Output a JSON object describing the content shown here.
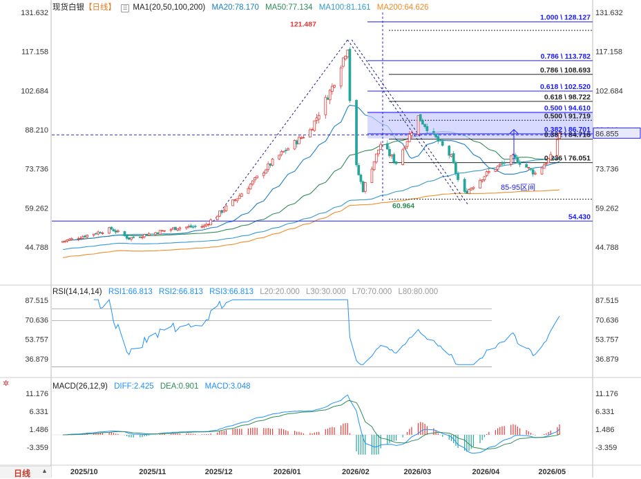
{
  "header": {
    "symbol": "现货白银",
    "period": "【日线】",
    "ma_settings": "MA1(20,50,100,200)",
    "ma20": "MA20:78.170",
    "ma50": "MA50:77.134",
    "ma100": "MA100:81.161",
    "ma200": "MA200:64.626"
  },
  "rsi_header": {
    "settings": "RSI(14,14,14)",
    "rsi1": "RSI1:66.813",
    "rsi2": "RSI2:66.813",
    "rsi3": "RSI3:66.813",
    "l20": "L20:20.000",
    "l30": "L30:30.000",
    "l70": "L70:70.000",
    "l80": "L80:80.000"
  },
  "macd_header": {
    "settings": "MACD(26,12,9)",
    "diff": "DIFF:2.425",
    "dea": "DEA:0.901",
    "macd": "MACD:3.048"
  },
  "bottom": {
    "period_button": "日线"
  },
  "colors": {
    "up": "#e53935",
    "down": "#26a69a",
    "ma20": "#1a7fc1",
    "ma50": "#2e8b57",
    "ma100": "#3399cc",
    "ma200": "#f08c28",
    "fib": "#1a1aff",
    "rsi": "#1e90ff",
    "price_tag": "#1a1aff"
  },
  "chart_data": [
    {
      "type": "candlestick",
      "title": "现货白银【日线】",
      "x_ticks": [
        "2025/10",
        "2025/11",
        "2025/12",
        "2026/01",
        "2026/02",
        "2026/03",
        "2026/04",
        "2026/05"
      ],
      "y_ticks": [
        131.632,
        117.158,
        102.684,
        88.21,
        73.736,
        59.262,
        44.788
      ],
      "ylim": [
        38,
        134
      ],
      "current_price": "86.855",
      "price_path_anchors": [
        {
          "date": "2025/09/20",
          "close": 46.5
        },
        {
          "date": "2025/10/14",
          "close": 51.5
        },
        {
          "date": "2025/10/22",
          "close": 48.0
        },
        {
          "date": "2025/11/13",
          "close": 52.0
        },
        {
          "date": "2025/11/25",
          "close": 52.5
        },
        {
          "date": "2025/12/10",
          "close": 63.0
        },
        {
          "date": "2025/12/28",
          "close": 78.0
        },
        {
          "date": "2026/01/12",
          "close": 88.0
        },
        {
          "date": "2026/01/22",
          "close": 104.0
        },
        {
          "date": "2026/01/29",
          "close": 119.0
        },
        {
          "date": "2026/01/31",
          "close": 80.0
        },
        {
          "date": "2026/02/05",
          "close": 66.0
        },
        {
          "date": "2026/02/13",
          "close": 83.0
        },
        {
          "date": "2026/02/20",
          "close": 76.0
        },
        {
          "date": "2026/03/02",
          "close": 93.0
        },
        {
          "date": "2026/03/09",
          "close": 86.0
        },
        {
          "date": "2026/03/17",
          "close": 78.0
        },
        {
          "date": "2026/03/22",
          "close": 64.0
        },
        {
          "date": "2026/04/02",
          "close": 72.0
        },
        {
          "date": "2026/04/14",
          "close": 78.0
        },
        {
          "date": "2026/04/24",
          "close": 72.0
        },
        {
          "date": "2026/05/01",
          "close": 78.0
        },
        {
          "date": "2026/05/05",
          "close": 87.0
        }
      ],
      "peak_label": "121.487",
      "low_label": "60.964",
      "fib_levels": [
        {
          "label": "1.000 \\ 128.127",
          "value": 128.127,
          "style": "solid-blue"
        },
        {
          "label": "0.786 \\ 113.782",
          "value": 113.782,
          "style": "solid-blue"
        },
        {
          "label": "0.786 \\ 108.693",
          "value": 108.693,
          "style": "solid-black"
        },
        {
          "label": "0.618 \\ 102.520",
          "value": 102.52,
          "style": "solid-blue"
        },
        {
          "label": "0.618 \\ 98.722",
          "value": 98.722,
          "style": "solid-black"
        },
        {
          "label": "0.500 \\ 94.610",
          "value": 94.61,
          "style": "solid-blue"
        },
        {
          "label": "0.500 \\ 91.719",
          "value": 91.719,
          "style": "dotted-black"
        },
        {
          "label": "0.382 \\ 86.701",
          "value": 86.701,
          "style": "solid-blue"
        },
        {
          "label": "0.382 \\ 84.716",
          "value": 84.716,
          "style": "solid-black"
        },
        {
          "label": "0.236 \\ 76.051",
          "value": 76.051,
          "style": "solid-black"
        },
        {
          "label": "54.430",
          "value": 54.43,
          "style": "solid-blue-full"
        }
      ],
      "annotation": "85-95区间",
      "highlight_band": [
        85,
        95
      ]
    },
    {
      "type": "line",
      "title": "RSI(14,14,14)",
      "y_ticks": [
        87.515,
        70.636,
        53.757,
        36.879
      ],
      "ylim": [
        30,
        92
      ],
      "levels": [
        80,
        70,
        30
      ]
    },
    {
      "type": "bar+line",
      "title": "MACD(26,12,9)",
      "y_ticks": [
        11.176,
        6.331,
        1.486,
        -3.359
      ],
      "ylim": [
        -6.5,
        12.5
      ]
    }
  ]
}
